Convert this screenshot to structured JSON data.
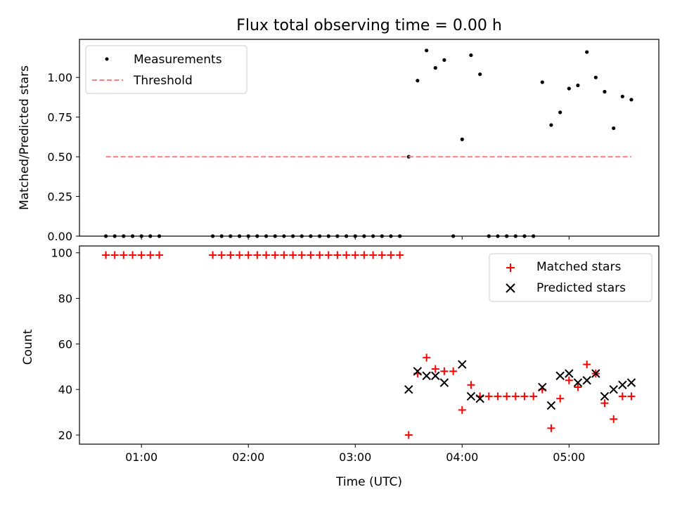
{
  "chart_data": [
    {
      "type": "scatter",
      "title": "Flux total observing time = 0.00 h",
      "xlabel": "",
      "ylabel": "Matched/Predicted stars",
      "xlim": [
        0.42,
        5.84
      ],
      "ylim": [
        0,
        1.24
      ],
      "yticks": [
        0,
        0.25,
        0.5,
        0.75,
        1.0
      ],
      "ytick_labels": [
        "0.00",
        "0.25",
        "0.50",
        "0.75",
        "1.00"
      ],
      "legend_position": "top-left",
      "series": [
        {
          "name": "Measurements",
          "style": "dot",
          "color": "#000000",
          "x": [
            0.667,
            0.75,
            0.833,
            0.917,
            1.0,
            1.083,
            1.167,
            1.667,
            1.75,
            1.833,
            1.917,
            2.0,
            2.083,
            2.167,
            2.25,
            2.333,
            2.417,
            2.5,
            2.583,
            2.667,
            2.75,
            2.833,
            2.917,
            3.0,
            3.083,
            3.167,
            3.25,
            3.333,
            3.417,
            3.5,
            3.583,
            3.667,
            3.75,
            3.833,
            3.917,
            4.0,
            4.083,
            4.167,
            4.25,
            4.333,
            4.417,
            4.5,
            4.583,
            4.667,
            4.75,
            4.833,
            4.917,
            5.0,
            5.083,
            5.167,
            5.25,
            5.333,
            5.417,
            5.5,
            5.583
          ],
          "y": [
            0,
            0,
            0,
            0,
            0,
            0,
            0,
            0,
            0,
            0,
            0,
            0,
            0,
            0,
            0,
            0,
            0,
            0,
            0,
            0,
            0,
            0,
            0,
            0,
            0,
            0,
            0,
            0,
            0,
            0.5,
            0.98,
            1.17,
            1.06,
            1.11,
            0,
            0.61,
            1.14,
            1.02,
            0,
            0,
            0,
            0,
            0,
            0,
            0.97,
            0.7,
            0.78,
            0.93,
            0.95,
            1.16,
            1.0,
            0.91,
            0.68,
            0.88,
            0.86
          ]
        },
        {
          "name": "Threshold",
          "style": "dashed",
          "color": "#ff7f7f",
          "x": [
            0.667,
            5.583
          ],
          "y": [
            0.5,
            0.5
          ]
        }
      ]
    },
    {
      "type": "scatter",
      "title": "",
      "xlabel": "Time (UTC)",
      "ylabel": "Count",
      "xlim": [
        0.42,
        5.84
      ],
      "ylim": [
        16,
        103
      ],
      "yticks": [
        20,
        40,
        60,
        80,
        100
      ],
      "ytick_labels": [
        "20",
        "40",
        "60",
        "80",
        "100"
      ],
      "xticks": [
        1,
        2,
        3,
        4,
        5
      ],
      "xtick_labels": [
        "01:00",
        "02:00",
        "03:00",
        "04:00",
        "05:00"
      ],
      "legend_position": "top-right",
      "series": [
        {
          "name": "Matched stars",
          "style": "plus",
          "color": "#ff0000",
          "x": [
            0.667,
            0.75,
            0.833,
            0.917,
            1.0,
            1.083,
            1.167,
            1.667,
            1.75,
            1.833,
            1.917,
            2.0,
            2.083,
            2.167,
            2.25,
            2.333,
            2.417,
            2.5,
            2.583,
            2.667,
            2.75,
            2.833,
            2.917,
            3.0,
            3.083,
            3.167,
            3.25,
            3.333,
            3.417,
            3.5,
            3.583,
            3.667,
            3.75,
            3.833,
            3.917,
            4.0,
            4.083,
            4.167,
            4.25,
            4.333,
            4.417,
            4.5,
            4.583,
            4.667,
            4.75,
            4.833,
            4.917,
            5.0,
            5.083,
            5.167,
            5.25,
            5.333,
            5.417,
            5.5,
            5.583
          ],
          "y": [
            99,
            99,
            99,
            99,
            99,
            99,
            99,
            99,
            99,
            99,
            99,
            99,
            99,
            99,
            99,
            99,
            99,
            99,
            99,
            99,
            99,
            99,
            99,
            99,
            99,
            99,
            99,
            99,
            99,
            20,
            47,
            54,
            49,
            48,
            48,
            31,
            42,
            37,
            37,
            37,
            37,
            37,
            37,
            37,
            40,
            23,
            36,
            44,
            41,
            51,
            47,
            34,
            27,
            37,
            37
          ]
        },
        {
          "name": "Predicted stars",
          "style": "x",
          "color": "#000000",
          "x": [
            3.5,
            3.583,
            3.667,
            3.75,
            3.833,
            4.0,
            4.083,
            4.167,
            4.75,
            4.833,
            4.917,
            5.0,
            5.083,
            5.167,
            5.25,
            5.333,
            5.417,
            5.5,
            5.583
          ],
          "y": [
            40,
            48,
            46,
            46,
            43,
            51,
            37,
            36,
            41,
            33,
            46,
            47,
            43,
            44,
            47,
            37,
            40,
            42,
            43
          ]
        }
      ]
    }
  ]
}
